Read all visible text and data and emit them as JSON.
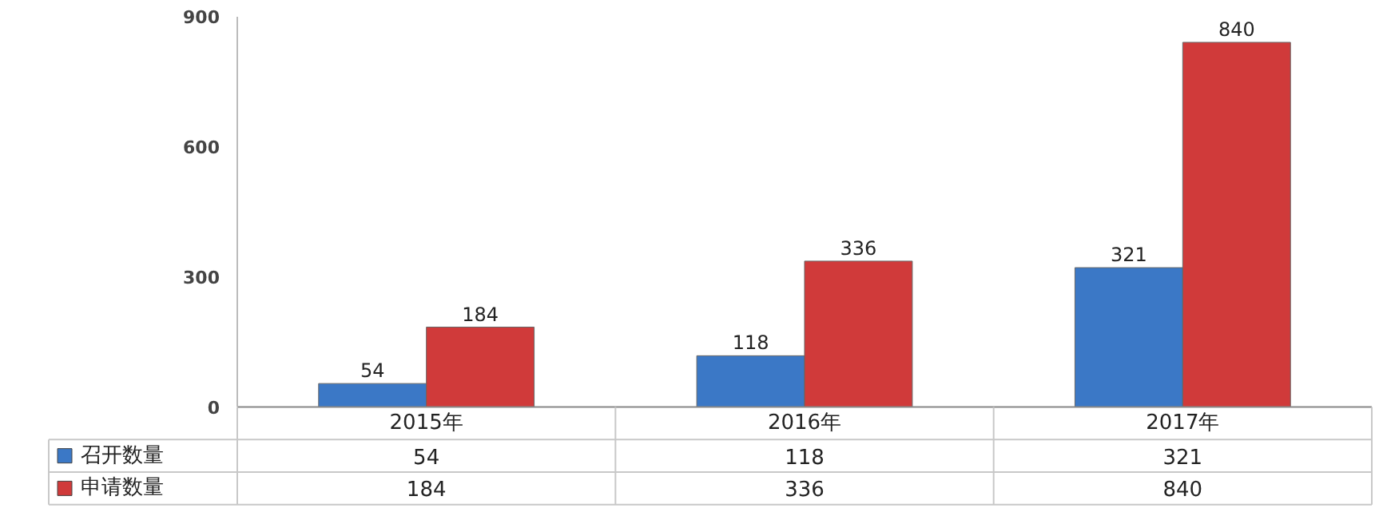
{
  "chart_data": {
    "type": "bar",
    "categories": [
      "2015年",
      "2016年",
      "2017年"
    ],
    "series": [
      {
        "name": "召开数量",
        "color": "#3b78c6",
        "values": [
          54,
          118,
          321
        ]
      },
      {
        "name": "申请数量",
        "color": "#d03a3a",
        "values": [
          184,
          336,
          840
        ]
      }
    ],
    "ylim": [
      0,
      900
    ],
    "yticks": [
      0,
      300,
      600,
      900
    ],
    "grid": false,
    "legend": "bottom",
    "data_labels": true,
    "annotations": [
      "54",
      "118",
      "321",
      "184",
      "336",
      "840"
    ]
  }
}
